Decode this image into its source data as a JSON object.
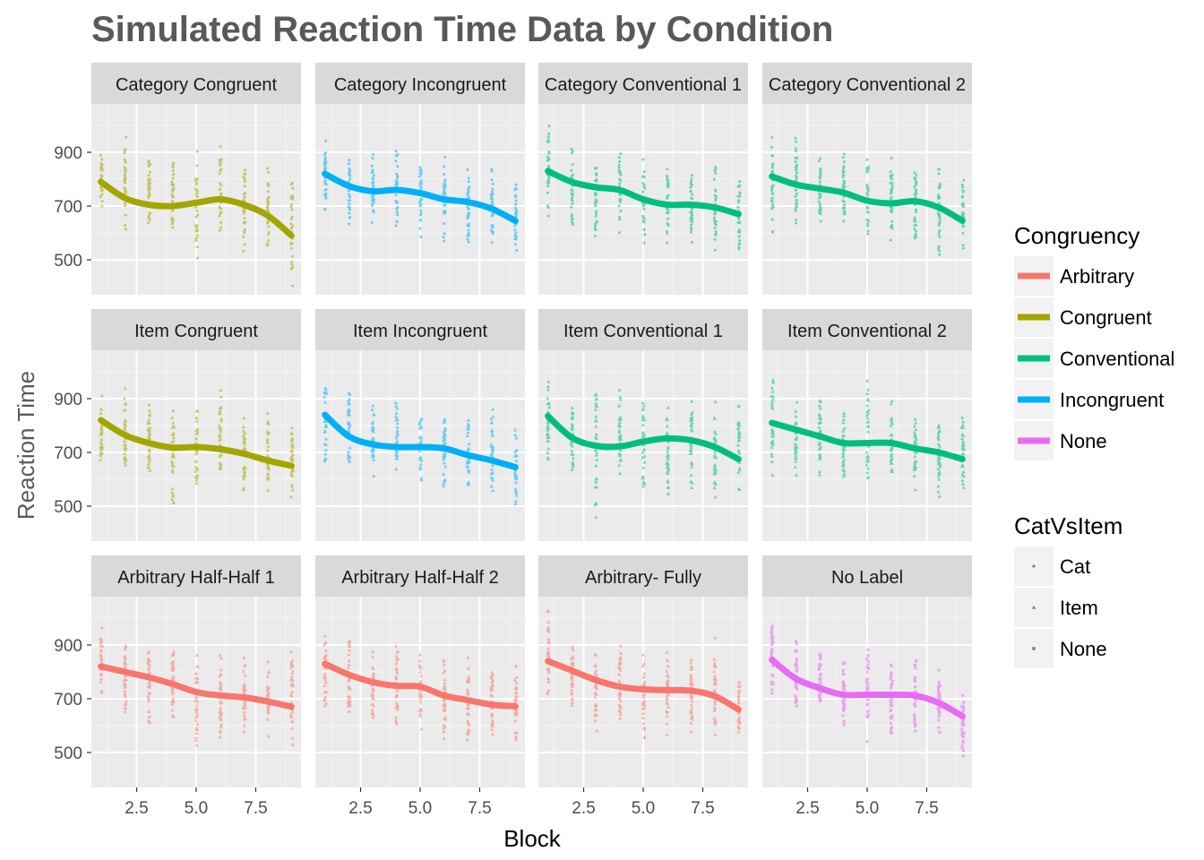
{
  "chart_data": {
    "type": "scatter",
    "title": "Simulated Reaction Time Data by Condition",
    "xlabel": "Block",
    "ylabel": "Reaction Time",
    "xlim": [
      0.6,
      9.4
    ],
    "ylim": [
      370,
      1080
    ],
    "x_ticks": [
      2.5,
      5.0,
      7.5
    ],
    "x_tick_labels": [
      "2.5",
      "5.0",
      "7.5"
    ],
    "y_ticks": [
      500,
      700,
      900
    ],
    "y_tick_labels": [
      "500",
      "700",
      "900"
    ],
    "grid": true,
    "layout": "facet-grid 3 rows x 4 columns",
    "colors": {
      "Arbitrary": "#F8766D",
      "Congruent": "#A3A500",
      "Conventional": "#00BF7D",
      "Incongruent": "#00B0F6",
      "None": "#E76BF3"
    },
    "legends": [
      {
        "title": "Congruency",
        "kind": "line",
        "placement": "right",
        "entries": [
          {
            "label": "Arbitrary",
            "color": "#F8766D"
          },
          {
            "label": "Congruent",
            "color": "#A3A500"
          },
          {
            "label": "Conventional",
            "color": "#00BF7D"
          },
          {
            "label": "Incongruent",
            "color": "#00B0F6"
          },
          {
            "label": "None",
            "color": "#E76BF3"
          }
        ]
      },
      {
        "title": "CatVsItem",
        "kind": "shape",
        "placement": "right",
        "entries": [
          {
            "label": "Cat",
            "shape": "circle"
          },
          {
            "label": "Item",
            "shape": "triangle"
          },
          {
            "label": "None",
            "shape": "square"
          }
        ]
      }
    ],
    "panels": [
      {
        "label": "Category Congruent",
        "congruency": "Congruent",
        "cat_vs_item": "Cat",
        "smooth_x": [
          1,
          2,
          3,
          4,
          5,
          6,
          7,
          8,
          9
        ],
        "smooth_y": [
          790,
          730,
          705,
          700,
          712,
          725,
          705,
          665,
          590
        ],
        "scatter_range": [
          [
            650,
            950
          ],
          [
            580,
            1000
          ],
          [
            600,
            920
          ],
          [
            600,
            930
          ],
          [
            470,
            920
          ],
          [
            540,
            930
          ],
          [
            490,
            890
          ],
          [
            540,
            890
          ],
          [
            390,
            830
          ]
        ]
      },
      {
        "label": "Category Incongruent",
        "congruency": "Incongruent",
        "cat_vs_item": "Cat",
        "smooth_x": [
          1,
          2,
          3,
          4,
          5,
          6,
          7,
          8,
          9
        ],
        "smooth_y": [
          820,
          775,
          755,
          760,
          748,
          725,
          715,
          690,
          645
        ],
        "scatter_range": [
          [
            650,
            970
          ],
          [
            600,
            920
          ],
          [
            620,
            920
          ],
          [
            610,
            940
          ],
          [
            560,
            900
          ],
          [
            550,
            900
          ],
          [
            530,
            870
          ],
          [
            540,
            870
          ],
          [
            520,
            800
          ]
        ]
      },
      {
        "label": "Category Conventional 1",
        "congruency": "Conventional",
        "cat_vs_item": "Cat",
        "smooth_x": [
          1,
          2,
          3,
          4,
          5,
          6,
          7,
          8,
          9
        ],
        "smooth_y": [
          830,
          790,
          770,
          760,
          725,
          705,
          705,
          695,
          670
        ],
        "scatter_range": [
          [
            650,
            1050
          ],
          [
            600,
            940
          ],
          [
            550,
            880
          ],
          [
            590,
            920
          ],
          [
            550,
            880
          ],
          [
            520,
            870
          ],
          [
            530,
            860
          ],
          [
            500,
            860
          ],
          [
            500,
            810
          ]
        ]
      },
      {
        "label": "Category Conventional 2",
        "congruency": "Conventional",
        "cat_vs_item": "Cat",
        "smooth_x": [
          1,
          2,
          3,
          4,
          5,
          6,
          7,
          8,
          9
        ],
        "smooth_y": [
          810,
          780,
          765,
          750,
          720,
          710,
          718,
          695,
          645
        ],
        "scatter_range": [
          [
            580,
            980
          ],
          [
            580,
            1010
          ],
          [
            620,
            900
          ],
          [
            610,
            920
          ],
          [
            560,
            900
          ],
          [
            550,
            900
          ],
          [
            540,
            880
          ],
          [
            500,
            860
          ],
          [
            500,
            830
          ]
        ]
      },
      {
        "label": "Item Congruent",
        "congruency": "Congruent",
        "cat_vs_item": "Item",
        "smooth_x": [
          1,
          2,
          3,
          4,
          5,
          6,
          7,
          8,
          9
        ],
        "smooth_y": [
          820,
          765,
          735,
          718,
          720,
          712,
          695,
          670,
          650
        ],
        "scatter_range": [
          [
            630,
            930
          ],
          [
            590,
            980
          ],
          [
            620,
            890
          ],
          [
            470,
            900
          ],
          [
            550,
            900
          ],
          [
            550,
            970
          ],
          [
            530,
            880
          ],
          [
            530,
            870
          ],
          [
            500,
            840
          ]
        ]
      },
      {
        "label": "Item Incongruent",
        "congruency": "Incongruent",
        "cat_vs_item": "Item",
        "smooth_x": [
          1,
          2,
          3,
          4,
          5,
          6,
          7,
          8,
          9
        ],
        "smooth_y": [
          840,
          760,
          730,
          720,
          720,
          715,
          690,
          670,
          645
        ],
        "scatter_range": [
          [
            630,
            1030
          ],
          [
            600,
            960
          ],
          [
            600,
            890
          ],
          [
            570,
            930
          ],
          [
            560,
            890
          ],
          [
            540,
            880
          ],
          [
            520,
            870
          ],
          [
            490,
            910
          ],
          [
            480,
            800
          ]
        ]
      },
      {
        "label": "Item Conventional 1",
        "congruency": "Conventional",
        "cat_vs_item": "Item",
        "smooth_x": [
          1,
          2,
          3,
          4,
          5,
          6,
          7,
          8,
          9
        ],
        "smooth_y": [
          835,
          755,
          725,
          722,
          740,
          752,
          745,
          720,
          675
        ],
        "scatter_range": [
          [
            620,
            1000
          ],
          [
            600,
            950
          ],
          [
            430,
            940
          ],
          [
            560,
            940
          ],
          [
            540,
            930
          ],
          [
            520,
            920
          ],
          [
            520,
            920
          ],
          [
            530,
            900
          ],
          [
            490,
            910
          ]
        ]
      },
      {
        "label": "Item Conventional 2",
        "congruency": "Conventional",
        "cat_vs_item": "Item",
        "smooth_x": [
          1,
          2,
          3,
          4,
          5,
          6,
          7,
          8,
          9
        ],
        "smooth_y": [
          810,
          785,
          760,
          735,
          735,
          735,
          715,
          700,
          675
        ],
        "scatter_range": [
          [
            580,
            1030
          ],
          [
            600,
            940
          ],
          [
            590,
            920
          ],
          [
            560,
            900
          ],
          [
            540,
            1020
          ],
          [
            540,
            900
          ],
          [
            520,
            880
          ],
          [
            530,
            860
          ],
          [
            520,
            860
          ]
        ]
      },
      {
        "label": "Arbitrary Half-Half 1",
        "congruency": "Arbitrary",
        "cat_vs_item": "Item",
        "smooth_x": [
          1,
          2,
          3,
          4,
          5,
          6,
          7,
          8,
          9
        ],
        "smooth_y": [
          820,
          800,
          780,
          755,
          725,
          712,
          705,
          690,
          670
        ],
        "scatter_range": [
          [
            650,
            990
          ],
          [
            600,
            930
          ],
          [
            560,
            910
          ],
          [
            580,
            900
          ],
          [
            520,
            890
          ],
          [
            520,
            880
          ],
          [
            530,
            880
          ],
          [
            530,
            870
          ],
          [
            520,
            880
          ]
        ]
      },
      {
        "label": "Arbitrary Half-Half 2",
        "congruency": "Arbitrary",
        "cat_vs_item": "Item",
        "smooth_x": [
          1,
          2,
          3,
          4,
          5,
          6,
          7,
          8,
          9
        ],
        "smooth_y": [
          830,
          790,
          762,
          748,
          745,
          712,
          695,
          678,
          672
        ],
        "scatter_range": [
          [
            650,
            990
          ],
          [
            600,
            960
          ],
          [
            580,
            910
          ],
          [
            560,
            920
          ],
          [
            550,
            890
          ],
          [
            530,
            880
          ],
          [
            460,
            870
          ],
          [
            530,
            860
          ],
          [
            530,
            850
          ]
        ]
      },
      {
        "label": "Arbitrary- Fully",
        "congruency": "Arbitrary",
        "cat_vs_item": "Item",
        "smooth_x": [
          1,
          2,
          3,
          4,
          5,
          6,
          7,
          8,
          9
        ],
        "smooth_y": [
          840,
          805,
          770,
          745,
          735,
          732,
          730,
          710,
          660
        ],
        "scatter_range": [
          [
            650,
            1060
          ],
          [
            600,
            950
          ],
          [
            560,
            900
          ],
          [
            570,
            930
          ],
          [
            520,
            900
          ],
          [
            530,
            900
          ],
          [
            540,
            880
          ],
          [
            510,
            980
          ],
          [
            540,
            820
          ]
        ]
      },
      {
        "label": "No Label",
        "congruency": "None",
        "cat_vs_item": "None",
        "smooth_x": [
          1,
          2,
          3,
          4,
          5,
          6,
          7,
          8,
          9
        ],
        "smooth_y": [
          845,
          775,
          740,
          715,
          715,
          715,
          712,
          685,
          635
        ],
        "scatter_range": [
          [
            700,
            1010
          ],
          [
            620,
            950
          ],
          [
            640,
            880
          ],
          [
            520,
            900
          ],
          [
            520,
            940
          ],
          [
            520,
            890
          ],
          [
            540,
            870
          ],
          [
            540,
            830
          ],
          [
            460,
            740
          ]
        ]
      }
    ]
  }
}
